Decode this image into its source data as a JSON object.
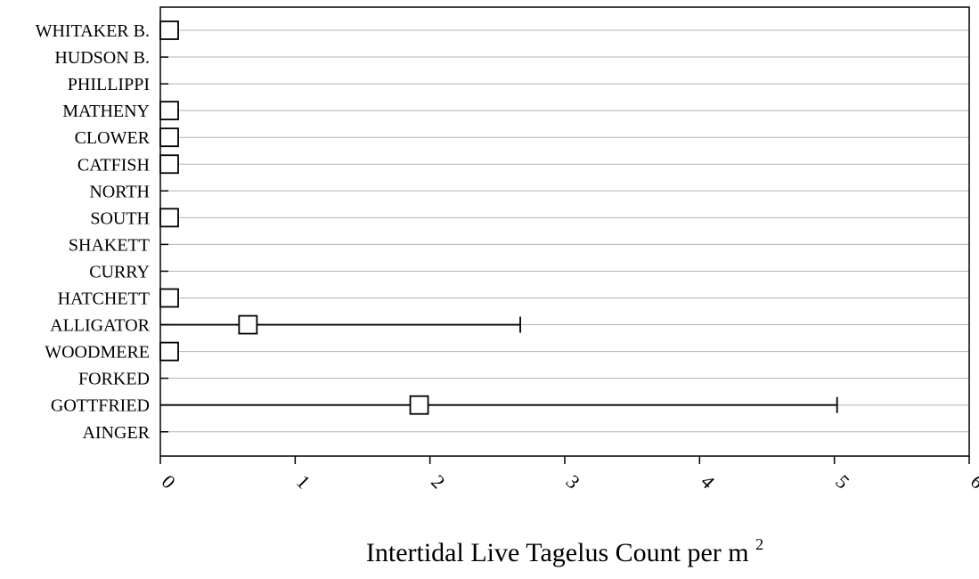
{
  "chart_data": {
    "type": "scatter",
    "orientation": "horizontal",
    "title": "",
    "xlabel": "Intertidal Live Tagelus Count per m",
    "xlabel_superscript": "2",
    "ylabel": "",
    "xlim": [
      0,
      6
    ],
    "xticks": [
      "0",
      "1",
      "2",
      "3",
      "4",
      "5",
      "6"
    ],
    "grid": "horizontal",
    "categories": [
      "WHITAKER B.",
      "HUDSON B.",
      "PHILLIPPI",
      "MATHENY",
      "CLOWER",
      "CATFISH",
      "NORTH",
      "SOUTH",
      "SHAKETT",
      "CURRY",
      "HATCHETT",
      "ALLIGATOR",
      "WOODMERE",
      "FORKED",
      "GOTTFRIED",
      "AINGER"
    ],
    "series": [
      {
        "marker": "open-square",
        "values": [
          0,
          null,
          null,
          0,
          0,
          0,
          null,
          0,
          null,
          null,
          0,
          0.65,
          0,
          null,
          1.92,
          null
        ],
        "error_upper": [
          null,
          null,
          null,
          null,
          null,
          null,
          null,
          null,
          null,
          null,
          null,
          2.67,
          null,
          null,
          5.02,
          null
        ]
      }
    ]
  }
}
